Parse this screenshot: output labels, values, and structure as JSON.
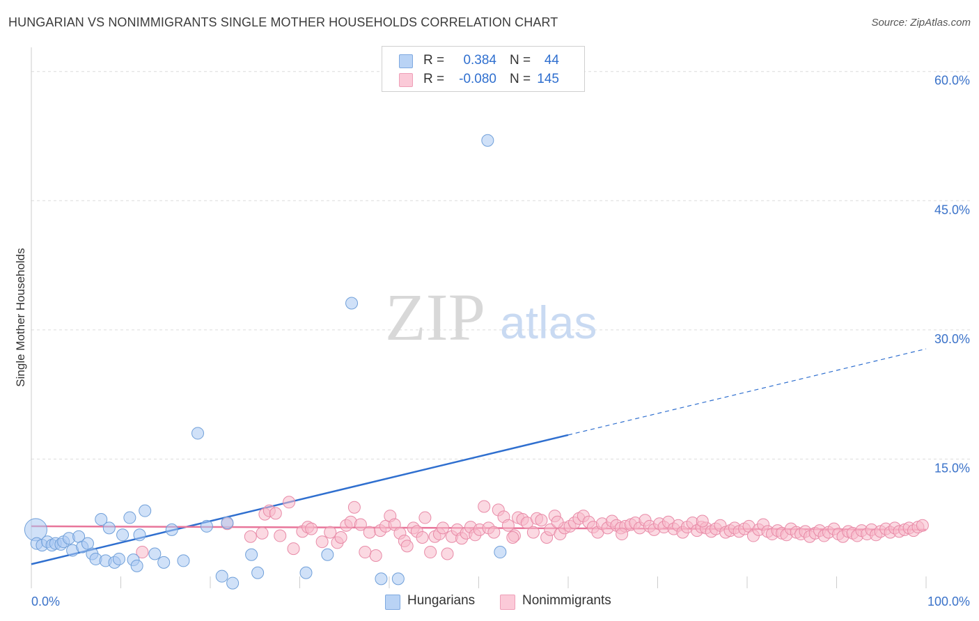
{
  "title": "HUNGARIAN VS NONIMMIGRANTS SINGLE MOTHER HOUSEHOLDS CORRELATION CHART",
  "source": "Source: ZipAtlas.com",
  "watermark": {
    "left": "ZIP",
    "right": "atlas"
  },
  "legend": {
    "rows": [
      {
        "r_label": "R =",
        "r_value": "0.384",
        "n_label": "N =",
        "n_value": "44",
        "color": "#a9c8f2"
      },
      {
        "r_label": "R =",
        "r_value": "-0.080",
        "n_label": "N =",
        "n_value": "145",
        "color": "#f7b9cb"
      }
    ]
  },
  "chart_data": {
    "type": "scatter",
    "title": "HUNGARIAN VS NONIMMIGRANTS SINGLE MOTHER HOUSEHOLDS CORRELATION CHART",
    "xlabel": "",
    "ylabel": "Single Mother Households",
    "xlim": [
      0,
      100
    ],
    "ylim": [
      0,
      62
    ],
    "x_tick_labels": [
      "0.0%",
      "100.0%"
    ],
    "y_ticks": [
      15,
      30,
      45,
      60
    ],
    "y_tick_labels": [
      "15.0%",
      "30.0%",
      "45.0%",
      "60.0%"
    ],
    "grid": true,
    "legend_position": "top-center",
    "series": [
      {
        "name": "Hungarians",
        "color": "#a9c8f2",
        "stroke": "#6f9fd9",
        "trend": {
          "x": [
            0,
            60
          ],
          "y": [
            2.8,
            17.8
          ],
          "extend_to": 100,
          "extend_y": 27.8,
          "color": "#2f6fcf"
        },
        "points": [
          [
            0.5,
            6.8,
            "big"
          ],
          [
            0.6,
            5.2
          ],
          [
            1.2,
            5.0
          ],
          [
            1.8,
            5.4
          ],
          [
            2.3,
            5.0
          ],
          [
            2.7,
            5.2
          ],
          [
            3.3,
            5.1
          ],
          [
            3.6,
            5.4
          ],
          [
            4.2,
            5.8
          ],
          [
            4.6,
            4.4
          ],
          [
            5.3,
            6.0
          ],
          [
            5.7,
            4.8
          ],
          [
            6.3,
            5.2
          ],
          [
            6.8,
            4.0
          ],
          [
            7.2,
            3.4
          ],
          [
            7.8,
            8.0
          ],
          [
            8.3,
            3.2
          ],
          [
            8.7,
            7.0
          ],
          [
            9.3,
            3.0
          ],
          [
            9.8,
            3.4
          ],
          [
            10.2,
            6.2
          ],
          [
            11.0,
            8.2
          ],
          [
            11.4,
            3.3
          ],
          [
            11.8,
            2.6
          ],
          [
            12.1,
            6.2
          ],
          [
            12.7,
            9.0
          ],
          [
            13.8,
            4.0
          ],
          [
            14.8,
            3.0
          ],
          [
            15.7,
            6.8
          ],
          [
            17.0,
            3.2
          ],
          [
            18.6,
            18.0
          ],
          [
            19.6,
            7.2
          ],
          [
            21.3,
            1.4
          ],
          [
            21.9,
            7.6
          ],
          [
            22.5,
            0.6
          ],
          [
            24.6,
            3.9
          ],
          [
            25.3,
            1.8
          ],
          [
            30.7,
            1.8
          ],
          [
            33.1,
            3.9
          ],
          [
            35.8,
            33.1
          ],
          [
            39.1,
            1.1
          ],
          [
            41.0,
            1.1
          ],
          [
            51.0,
            52.0
          ],
          [
            52.4,
            4.2
          ]
        ]
      },
      {
        "name": "Nonimmigrants",
        "color": "#f7b9cb",
        "stroke": "#e88aa7",
        "trend": {
          "x": [
            0,
            100
          ],
          "y": [
            7.2,
            6.8
          ],
          "color": "#e8759a"
        },
        "points": [
          [
            12.4,
            4.2
          ],
          [
            21.9,
            7.5
          ],
          [
            24.5,
            6.0
          ],
          [
            25.8,
            6.4
          ],
          [
            26.1,
            8.6
          ],
          [
            26.6,
            9.0
          ],
          [
            27.3,
            8.7
          ],
          [
            27.8,
            6.1
          ],
          [
            28.8,
            10.0
          ],
          [
            29.3,
            4.6
          ],
          [
            30.3,
            6.6
          ],
          [
            30.9,
            7.1
          ],
          [
            31.3,
            6.9
          ],
          [
            32.5,
            5.4
          ],
          [
            33.4,
            6.5
          ],
          [
            34.2,
            5.3
          ],
          [
            34.6,
            5.9
          ],
          [
            35.2,
            7.3
          ],
          [
            35.7,
            7.7
          ],
          [
            36.1,
            9.4
          ],
          [
            36.8,
            7.4
          ],
          [
            37.3,
            4.2
          ],
          [
            37.8,
            6.5
          ],
          [
            38.5,
            3.8
          ],
          [
            39.0,
            6.7
          ],
          [
            39.6,
            7.2
          ],
          [
            40.1,
            8.4
          ],
          [
            40.6,
            7.4
          ],
          [
            41.2,
            6.4
          ],
          [
            41.7,
            5.5
          ],
          [
            42.0,
            4.9
          ],
          [
            42.7,
            7.0
          ],
          [
            43.1,
            6.6
          ],
          [
            43.7,
            5.9
          ],
          [
            44.0,
            8.2
          ],
          [
            44.6,
            4.2
          ],
          [
            45.1,
            6.0
          ],
          [
            45.6,
            6.3
          ],
          [
            46.0,
            7.0
          ],
          [
            46.5,
            4.0
          ],
          [
            47.0,
            6.0
          ],
          [
            47.6,
            6.8
          ],
          [
            48.1,
            5.8
          ],
          [
            48.6,
            6.4
          ],
          [
            49.1,
            7.1
          ],
          [
            49.6,
            6.2
          ],
          [
            50.1,
            6.8
          ],
          [
            50.6,
            9.5
          ],
          [
            51.1,
            7.0
          ],
          [
            51.7,
            6.5
          ],
          [
            52.2,
            9.1
          ],
          [
            52.8,
            8.3
          ],
          [
            53.3,
            7.3
          ],
          [
            54.0,
            6.1
          ],
          [
            54.4,
            8.2
          ],
          [
            54.9,
            8.0
          ],
          [
            55.4,
            7.6
          ],
          [
            56.1,
            6.5
          ],
          [
            56.5,
            8.1
          ],
          [
            57.0,
            7.9
          ],
          [
            57.6,
            5.9
          ],
          [
            58.0,
            6.8
          ],
          [
            58.5,
            8.4
          ],
          [
            59.1,
            6.3
          ],
          [
            59.6,
            7.0
          ],
          [
            60.2,
            7.2
          ],
          [
            60.7,
            7.6
          ],
          [
            61.2,
            8.1
          ],
          [
            61.7,
            8.4
          ],
          [
            62.3,
            7.7
          ],
          [
            62.8,
            7.1
          ],
          [
            63.3,
            6.5
          ],
          [
            63.8,
            7.5
          ],
          [
            64.4,
            7.0
          ],
          [
            64.9,
            7.8
          ],
          [
            65.4,
            7.3
          ],
          [
            65.9,
            7.0
          ],
          [
            66.4,
            7.2
          ],
          [
            67.0,
            7.4
          ],
          [
            67.5,
            7.6
          ],
          [
            68.0,
            7.0
          ],
          [
            68.6,
            7.9
          ],
          [
            69.1,
            7.2
          ],
          [
            69.6,
            6.8
          ],
          [
            70.2,
            7.5
          ],
          [
            70.7,
            7.1
          ],
          [
            71.2,
            7.7
          ],
          [
            71.8,
            6.9
          ],
          [
            72.3,
            7.3
          ],
          [
            72.8,
            6.5
          ],
          [
            73.3,
            7.1
          ],
          [
            73.9,
            7.6
          ],
          [
            74.4,
            6.7
          ],
          [
            74.9,
            7.1
          ],
          [
            75.4,
            7.0
          ],
          [
            76.0,
            6.6
          ],
          [
            76.5,
            6.9
          ],
          [
            77.0,
            7.3
          ],
          [
            77.6,
            6.5
          ],
          [
            78.1,
            6.7
          ],
          [
            78.6,
            7.0
          ],
          [
            79.1,
            6.6
          ],
          [
            79.7,
            6.9
          ],
          [
            80.2,
            7.2
          ],
          [
            80.7,
            6.1
          ],
          [
            81.3,
            6.8
          ],
          [
            81.8,
            7.4
          ],
          [
            82.3,
            6.6
          ],
          [
            82.8,
            6.3
          ],
          [
            83.4,
            6.7
          ],
          [
            83.9,
            6.4
          ],
          [
            84.4,
            6.2
          ],
          [
            84.9,
            6.9
          ],
          [
            85.5,
            6.5
          ],
          [
            86.0,
            6.3
          ],
          [
            86.5,
            6.6
          ],
          [
            87.0,
            6.0
          ],
          [
            87.6,
            6.4
          ],
          [
            88.1,
            6.7
          ],
          [
            88.6,
            6.1
          ],
          [
            89.1,
            6.5
          ],
          [
            89.7,
            6.9
          ],
          [
            90.2,
            6.3
          ],
          [
            90.7,
            6.0
          ],
          [
            91.3,
            6.6
          ],
          [
            91.8,
            6.4
          ],
          [
            92.3,
            6.1
          ],
          [
            92.8,
            6.7
          ],
          [
            93.4,
            6.3
          ],
          [
            93.9,
            6.8
          ],
          [
            94.4,
            6.2
          ],
          [
            94.9,
            6.6
          ],
          [
            95.5,
            6.9
          ],
          [
            96.0,
            6.5
          ],
          [
            96.5,
            7.0
          ],
          [
            97.0,
            6.6
          ],
          [
            97.6,
            6.8
          ],
          [
            98.1,
            7.0
          ],
          [
            98.6,
            6.7
          ],
          [
            99.1,
            7.1
          ],
          [
            99.6,
            7.3
          ],
          [
            75.0,
            7.8
          ],
          [
            66.0,
            6.3
          ],
          [
            58.8,
            7.7
          ],
          [
            53.8,
            5.9
          ]
        ]
      }
    ]
  },
  "bottom_legend": [
    {
      "label": "Hungarians",
      "color": "#a9c8f2"
    },
    {
      "label": "Nonimmigrants",
      "color": "#f7b9cb"
    }
  ]
}
